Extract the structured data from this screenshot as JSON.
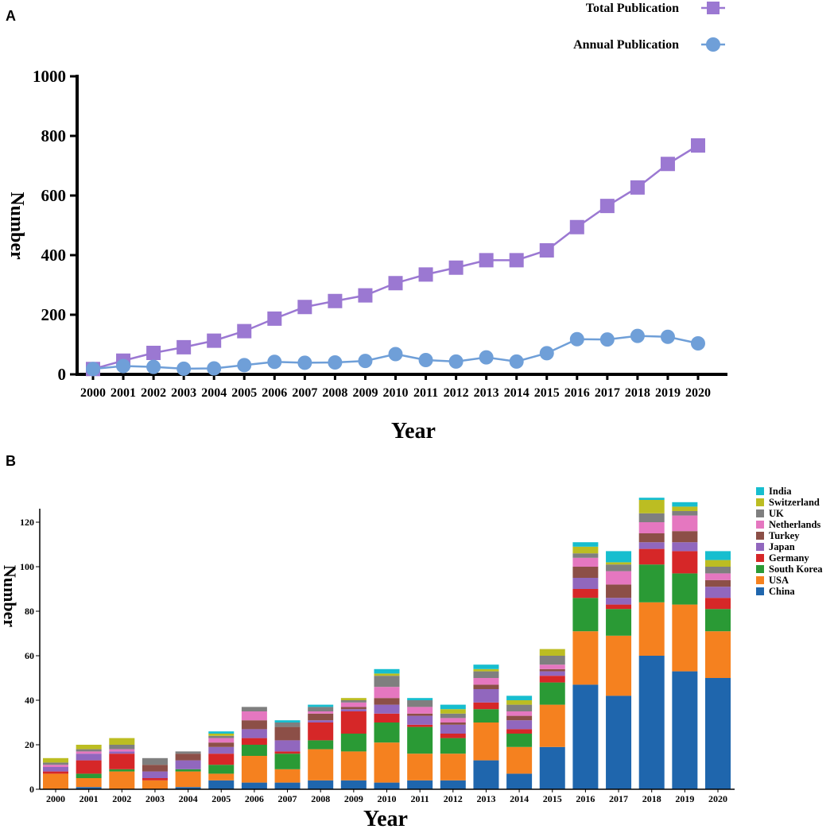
{
  "panel_a": {
    "letter": "A"
  },
  "panel_b": {
    "letter": "B"
  },
  "colors": {
    "total": "#9b78d2",
    "annual": "#6f9fd8",
    "axis": "#000000"
  },
  "chart_data": [
    {
      "type": "line",
      "panel": "A",
      "title": "",
      "xlabel": "Year",
      "ylabel": "Number",
      "ylim": [
        0,
        1000
      ],
      "yticks": [
        0,
        200,
        400,
        600,
        800,
        1000
      ],
      "legend_position": "top-right",
      "x": [
        "2000",
        "2001",
        "2002",
        "2003",
        "2004",
        "2005",
        "2006",
        "2007",
        "2008",
        "2009",
        "2010",
        "2011",
        "2012",
        "2013",
        "2014",
        "2015",
        "2016",
        "2017",
        "2018",
        "2019",
        "2020"
      ],
      "series": [
        {
          "name": "Total Publication",
          "marker": "square",
          "color": "#9b78d2",
          "values": [
            18,
            46,
            72,
            91,
            113,
            145,
            187,
            226,
            246,
            265,
            306,
            335,
            358,
            383,
            383,
            416,
            494,
            565,
            627,
            706,
            768
          ]
        },
        {
          "name": "Annual Publication",
          "marker": "circle",
          "color": "#6f9fd8",
          "values": [
            18,
            28,
            25,
            19,
            20,
            31,
            42,
            39,
            40,
            45,
            68,
            48,
            43,
            57,
            43,
            71,
            118,
            117,
            129,
            126,
            104
          ]
        }
      ]
    },
    {
      "type": "bar",
      "stacked": true,
      "panel": "B",
      "title": "",
      "xlabel": "Year",
      "ylabel": "Number",
      "ylim": [
        0,
        132
      ],
      "yticks": [
        0,
        20,
        40,
        60,
        80,
        100,
        120
      ],
      "legend_position": "top-right",
      "categories": [
        "2000",
        "2001",
        "2002",
        "2003",
        "2004",
        "2005",
        "2006",
        "2007",
        "2008",
        "2009",
        "2010",
        "2011",
        "2012",
        "2013",
        "2014",
        "2015",
        "2016",
        "2017",
        "2018",
        "2019",
        "2020"
      ],
      "series": [
        {
          "name": "China",
          "color": "#1f66ad",
          "values": [
            0,
            1,
            0,
            0,
            1,
            4,
            3,
            3,
            4,
            4,
            3,
            4,
            4,
            13,
            7,
            19,
            47,
            42,
            60,
            53,
            50
          ]
        },
        {
          "name": "USA",
          "color": "#f5811f",
          "values": [
            7,
            4,
            8,
            4,
            7,
            3,
            12,
            6,
            14,
            13,
            18,
            12,
            12,
            17,
            12,
            19,
            24,
            27,
            24,
            30,
            21
          ]
        },
        {
          "name": "South Korea",
          "color": "#2a9a35",
          "values": [
            0,
            2,
            1,
            0,
            1,
            4,
            5,
            7,
            4,
            8,
            9,
            12,
            7,
            6,
            6,
            10,
            15,
            12,
            17,
            14,
            10
          ]
        },
        {
          "name": "Germany",
          "color": "#d62728",
          "values": [
            1,
            6,
            7,
            1,
            0,
            5,
            3,
            1,
            8,
            10,
            4,
            1,
            2,
            3,
            2,
            3,
            4,
            2,
            7,
            10,
            5
          ]
        },
        {
          "name": "Japan",
          "color": "#9167be",
          "values": [
            2,
            3,
            1,
            3,
            4,
            3,
            4,
            5,
            1,
            1,
            4,
            4,
            4,
            6,
            4,
            2,
            5,
            3,
            3,
            4,
            5
          ]
        },
        {
          "name": "Turkey",
          "color": "#8c4f47",
          "values": [
            0,
            0,
            0,
            3,
            3,
            2,
            4,
            6,
            3,
            1,
            3,
            1,
            1,
            2,
            2,
            1,
            5,
            6,
            4,
            5,
            3
          ]
        },
        {
          "name": "Netherlands",
          "color": "#e577c0",
          "values": [
            1,
            1,
            1,
            0,
            0,
            2,
            4,
            0,
            1,
            2,
            5,
            3,
            2,
            3,
            2,
            2,
            4,
            6,
            5,
            7,
            3
          ]
        },
        {
          "name": "UK",
          "color": "#7f7f7f",
          "values": [
            1,
            1,
            2,
            3,
            1,
            1,
            2,
            2,
            2,
            1,
            5,
            3,
            2,
            3,
            3,
            4,
            2,
            3,
            4,
            2,
            3
          ]
        },
        {
          "name": "Switzerland",
          "color": "#bcbd22",
          "values": [
            2,
            2,
            3,
            0,
            0,
            1,
            0,
            0,
            0,
            1,
            1,
            0,
            2,
            1,
            2,
            3,
            3,
            1,
            6,
            2,
            3
          ]
        },
        {
          "name": "India",
          "color": "#17becf",
          "values": [
            0,
            0,
            0,
            0,
            0,
            1,
            0,
            1,
            1,
            0,
            2,
            1,
            2,
            2,
            2,
            0,
            2,
            5,
            1,
            2,
            4
          ]
        }
      ]
    }
  ]
}
